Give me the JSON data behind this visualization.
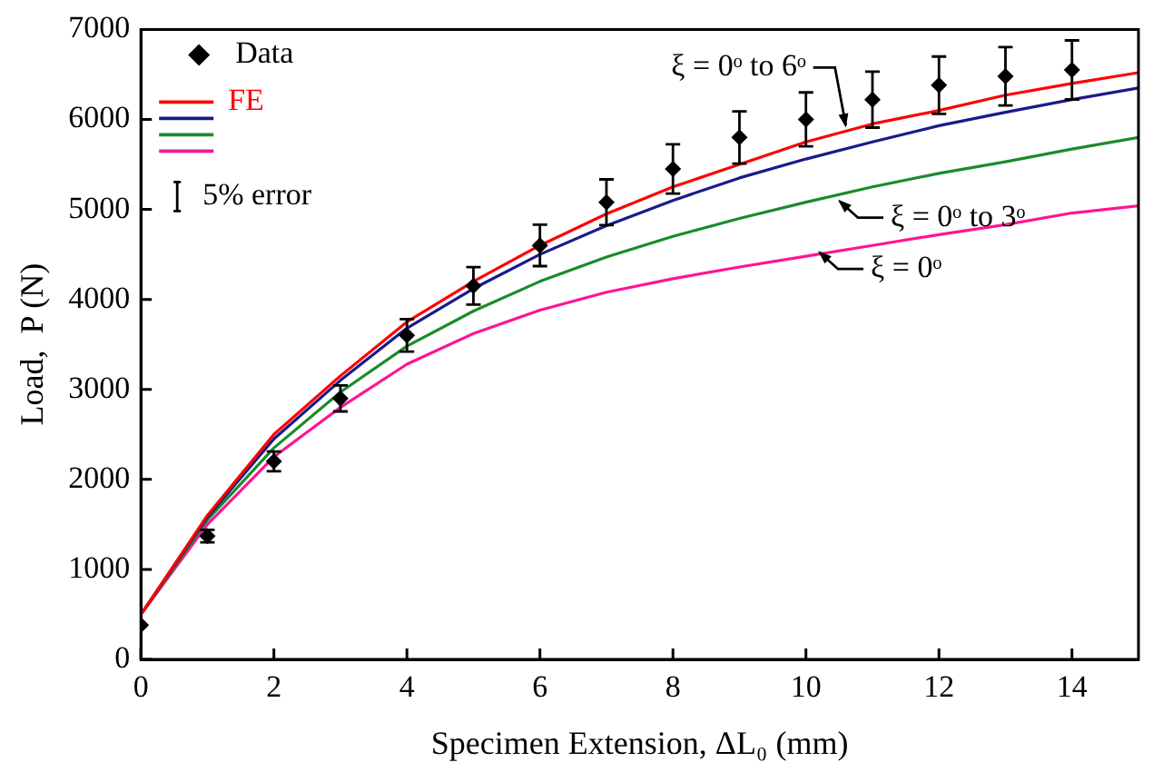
{
  "chart_data": {
    "type": "line",
    "xlabel": "Specimen Extension, ΔL₀ (mm)",
    "ylabel": "Load,  P (N)",
    "xlim": [
      0,
      15
    ],
    "xticks": [
      0,
      2,
      4,
      6,
      8,
      10,
      12,
      14
    ],
    "ylim": [
      0,
      7000
    ],
    "yticks": [
      0,
      1000,
      2000,
      3000,
      4000,
      5000,
      6000,
      7000
    ],
    "legend": "top left",
    "grid": false,
    "series": [
      {
        "name": "Data",
        "type": "scatter",
        "marker": "diamond",
        "color": "#000000",
        "x": [
          0,
          1,
          2,
          3,
          4,
          5,
          6,
          7,
          8,
          9,
          10,
          11,
          12,
          13,
          14
        ],
        "values": [
          380,
          1370,
          2200,
          2900,
          3600,
          4150,
          4600,
          5080,
          5450,
          5800,
          6000,
          6220,
          6380,
          6480,
          6550
        ],
        "errors": [
          null,
          69,
          110,
          145,
          180,
          208,
          230,
          254,
          273,
          290,
          300,
          311,
          319,
          324,
          328
        ]
      },
      {
        "name": "FE",
        "type": "line",
        "color": "#ff0000",
        "x": [
          0,
          1,
          2,
          3,
          4,
          5,
          6,
          7,
          8,
          9,
          10,
          11,
          12,
          13,
          14,
          15
        ],
        "values": [
          500,
          1600,
          2500,
          3150,
          3750,
          4200,
          4600,
          4950,
          5250,
          5500,
          5750,
          5950,
          6100,
          6270,
          6400,
          6520
        ]
      },
      {
        "type": "line",
        "color": "#1a1a8c",
        "x": [
          0,
          1,
          2,
          3,
          4,
          5,
          6,
          7,
          8,
          9,
          10,
          11,
          12,
          13,
          14,
          15
        ],
        "values": [
          500,
          1580,
          2450,
          3100,
          3680,
          4120,
          4500,
          4820,
          5100,
          5350,
          5560,
          5750,
          5930,
          6080,
          6220,
          6350
        ]
      },
      {
        "type": "line",
        "color": "#1a8c2a",
        "x": [
          0,
          1,
          2,
          3,
          4,
          5,
          6,
          7,
          8,
          9,
          10,
          11,
          12,
          13,
          14,
          15
        ],
        "values": [
          500,
          1550,
          2350,
          2970,
          3480,
          3870,
          4200,
          4470,
          4700,
          4900,
          5080,
          5250,
          5400,
          5530,
          5670,
          5800
        ]
      },
      {
        "type": "line",
        "color": "#ff1493",
        "x": [
          0,
          1,
          2,
          3,
          4,
          5,
          6,
          7,
          8,
          9,
          10,
          11,
          12,
          13,
          14,
          15
        ],
        "values": [
          500,
          1500,
          2250,
          2800,
          3280,
          3620,
          3880,
          4080,
          4230,
          4360,
          4480,
          4600,
          4720,
          4830,
          4960,
          5040
        ]
      }
    ],
    "annotations": [
      {
        "text": "ξ = 0ᵒ to 6ᵒ",
        "x": 10.6,
        "y": 5850
      },
      {
        "text": "ξ = 0ᵒ to 3ᵒ",
        "x": 10.4,
        "y": 5150
      },
      {
        "text": "ξ = 0ᵒ",
        "x": 10.1,
        "y": 4580
      },
      "5% error"
    ]
  }
}
